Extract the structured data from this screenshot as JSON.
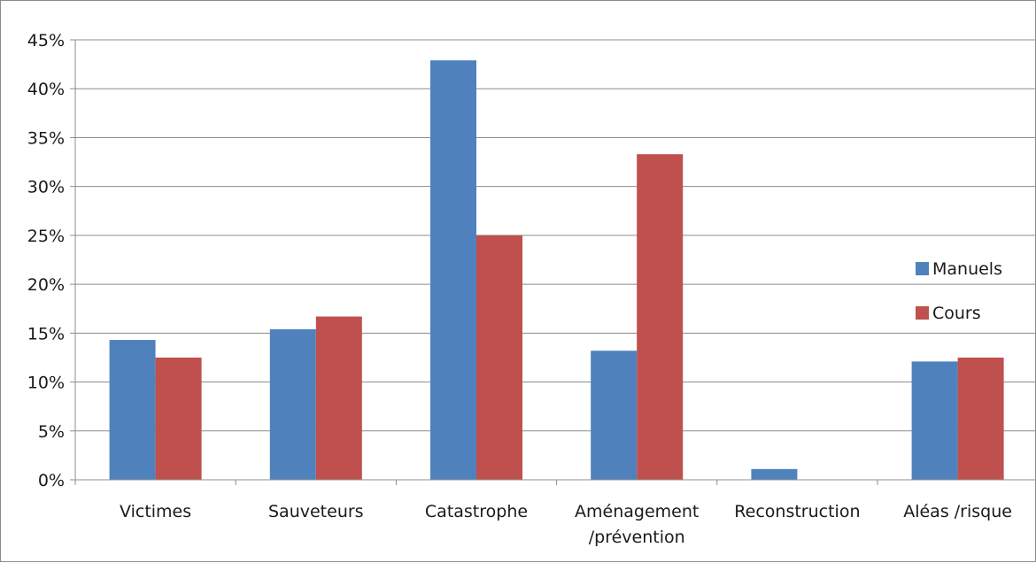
{
  "chart_data": {
    "type": "bar",
    "categories": [
      [
        "Victimes"
      ],
      [
        "Sauveteurs"
      ],
      [
        "Catastrophe"
      ],
      [
        "Aménagement",
        "/prévention"
      ],
      [
        "Reconstruction"
      ],
      [
        "Aléas /risque"
      ]
    ],
    "series": [
      {
        "name": "Manuels",
        "color": "#4f81bd",
        "values": [
          14.3,
          15.4,
          42.9,
          13.2,
          1.1,
          12.1
        ]
      },
      {
        "name": "Cours",
        "color": "#c0504d",
        "values": [
          12.5,
          16.7,
          25.0,
          33.3,
          0,
          12.5
        ]
      }
    ],
    "y_ticks": [
      "0%",
      "5%",
      "10%",
      "15%",
      "20%",
      "25%",
      "30%",
      "35%",
      "40%",
      "45%"
    ],
    "ylim": [
      0,
      45
    ],
    "y_unit": "%",
    "grid": true,
    "legend_position": "right",
    "title": "",
    "xlabel": "",
    "ylabel": ""
  }
}
